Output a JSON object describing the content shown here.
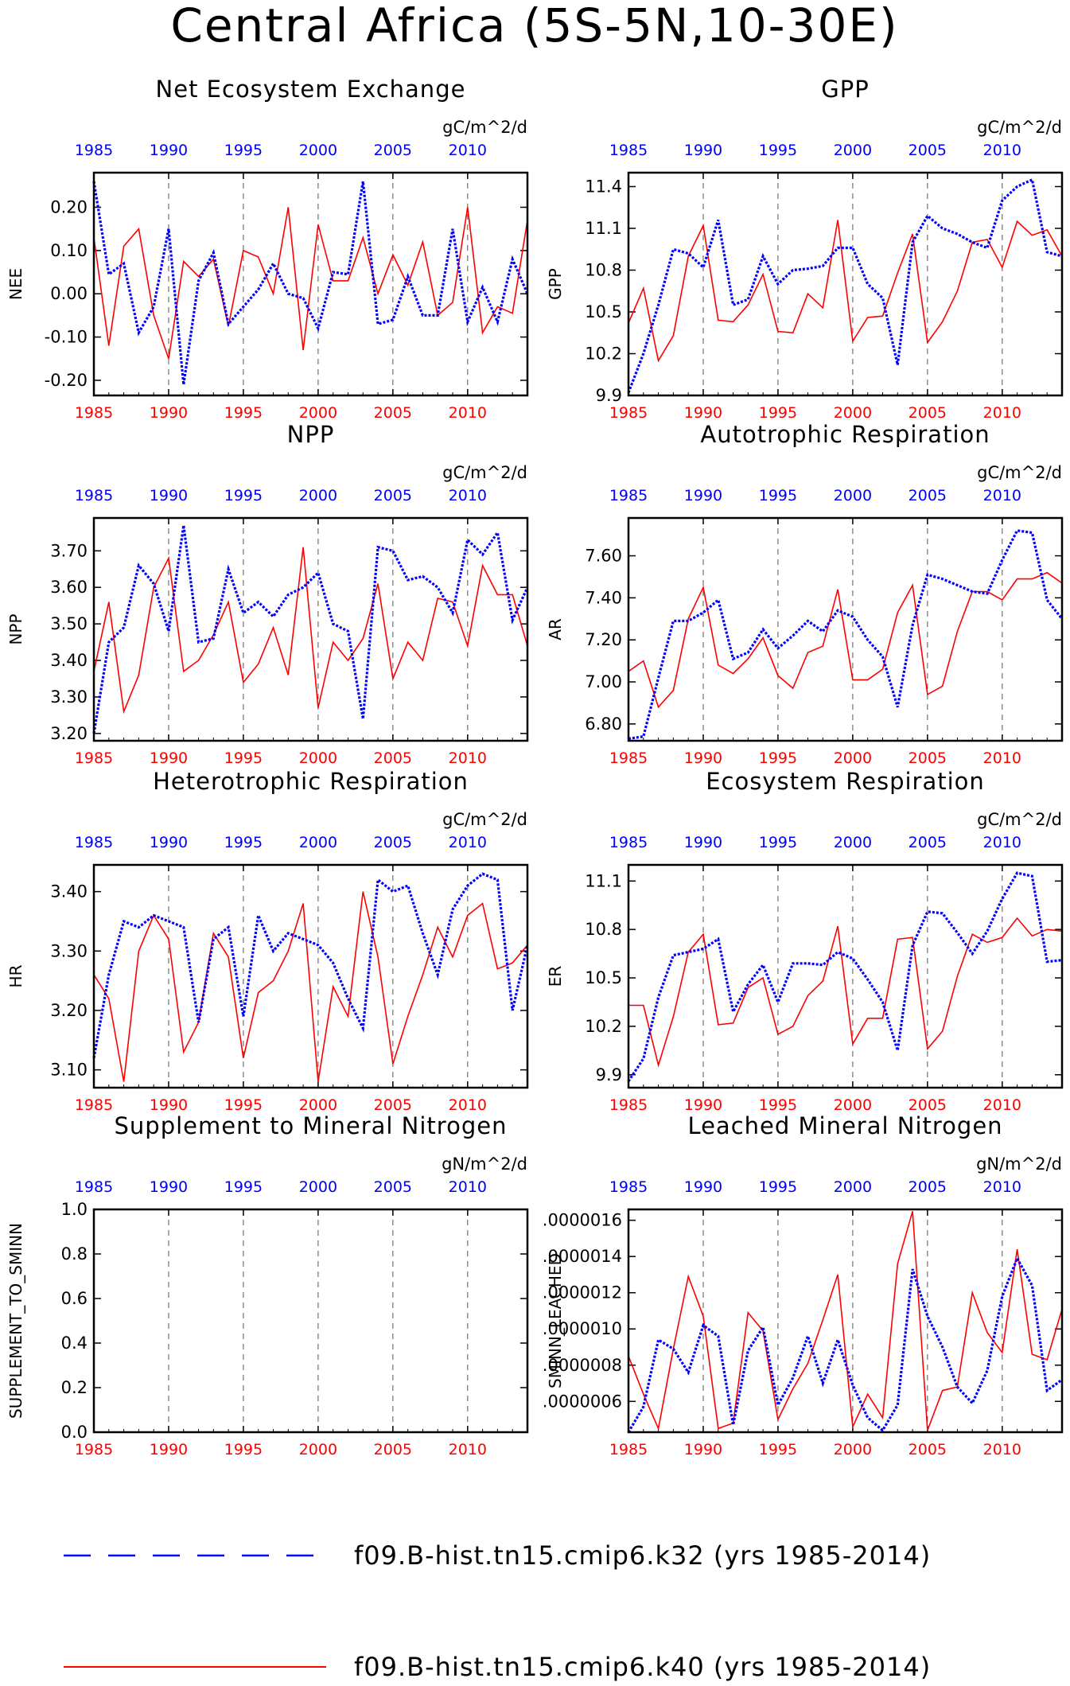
{
  "title": "Central Africa (5S-5N,10-30E)",
  "colors": {
    "series_a": "#0000ff",
    "series_b": "#ff0000",
    "axis": "#000000",
    "grid": "#555555"
  },
  "legend": {
    "items": [
      {
        "label": "f09.B-hist.tn15.cmip6.k32 (yrs 1985-2014)",
        "color": "#0000ff",
        "style": "dashed"
      },
      {
        "label": "f09.B-hist.tn15.cmip6.k40 (yrs 1985-2014)",
        "color": "#ff0000",
        "style": "solid"
      }
    ]
  },
  "chart_data": [
    {
      "type": "line",
      "title": "Net Ecosystem Exchange",
      "ylabel": "NEE",
      "units": "gC/m^2/d",
      "xlim": [
        1985,
        2014
      ],
      "ylim": [
        -0.235,
        0.28
      ],
      "yticks": [
        -0.2,
        -0.1,
        0.0,
        0.1,
        0.2
      ],
      "yticklabels": [
        "-0.20",
        "-0.10",
        "0.00",
        "0.10",
        "0.20"
      ],
      "xticks": [
        1985,
        1990,
        1995,
        2000,
        2005,
        2010
      ],
      "x": [
        1985,
        1986,
        1987,
        1988,
        1989,
        1990,
        1991,
        1992,
        1993,
        1994,
        1995,
        1996,
        1997,
        1998,
        1999,
        2000,
        2001,
        2002,
        2003,
        2004,
        2005,
        2006,
        2007,
        2008,
        2009,
        2010,
        2011,
        2012,
        2013,
        2014
      ],
      "series": [
        {
          "values": [
            0.26,
            0.045,
            0.07,
            -0.09,
            -0.03,
            0.15,
            -0.21,
            0.03,
            0.095,
            -0.07,
            -0.03,
            0.01,
            0.07,
            0.0,
            -0.01,
            -0.08,
            0.05,
            0.045,
            0.26,
            -0.07,
            -0.06,
            0.04,
            -0.05,
            -0.05,
            0.15,
            -0.065,
            0.015,
            -0.065,
            0.08,
            0.0
          ]
        },
        {
          "values": [
            0.13,
            -0.12,
            0.11,
            0.15,
            -0.05,
            -0.15,
            0.075,
            0.04,
            0.08,
            -0.075,
            0.1,
            0.085,
            0.0,
            0.2,
            -0.13,
            0.16,
            0.03,
            0.03,
            0.13,
            0.0,
            0.09,
            0.02,
            0.12,
            -0.05,
            -0.02,
            0.2,
            -0.09,
            -0.03,
            -0.045,
            0.17
          ]
        }
      ]
    },
    {
      "type": "line",
      "title": "GPP",
      "ylabel": "GPP",
      "units": "gC/m^2/d",
      "xlim": [
        1985,
        2014
      ],
      "ylim": [
        9.9,
        11.5
      ],
      "yticks": [
        9.9,
        10.2,
        10.5,
        10.8,
        11.1,
        11.4
      ],
      "yticklabels": [
        "9.9",
        "10.2",
        "10.5",
        "10.8",
        "11.1",
        "11.4"
      ],
      "xticks": [
        1985,
        1990,
        1995,
        2000,
        2005,
        2010
      ],
      "x": [
        1985,
        1986,
        1987,
        1988,
        1989,
        1990,
        1991,
        1992,
        1993,
        1994,
        1995,
        1996,
        1997,
        1998,
        1999,
        2000,
        2001,
        2002,
        2003,
        2004,
        2005,
        2006,
        2007,
        2008,
        2009,
        2010,
        2011,
        2012,
        2013,
        2014
      ],
      "series": [
        {
          "values": [
            9.92,
            10.2,
            10.55,
            10.95,
            10.92,
            10.82,
            11.16,
            10.55,
            10.59,
            10.9,
            10.7,
            10.8,
            10.81,
            10.83,
            10.96,
            10.96,
            10.7,
            10.6,
            10.12,
            11.0,
            11.19,
            11.1,
            11.06,
            11.0,
            10.96,
            11.3,
            11.4,
            11.45,
            10.93,
            10.9
          ]
        },
        {
          "values": [
            10.42,
            10.67,
            10.15,
            10.33,
            10.9,
            11.12,
            10.44,
            10.43,
            10.55,
            10.77,
            10.36,
            10.35,
            10.63,
            10.53,
            11.16,
            10.29,
            10.46,
            10.47,
            10.78,
            11.06,
            10.28,
            10.43,
            10.65,
            11.0,
            11.02,
            10.82,
            11.15,
            11.05,
            11.09,
            10.9
          ]
        }
      ]
    },
    {
      "type": "line",
      "title": "NPP",
      "ylabel": "NPP",
      "units": "gC/m^2/d",
      "xlim": [
        1985,
        2014
      ],
      "ylim": [
        3.18,
        3.79
      ],
      "yticks": [
        3.2,
        3.3,
        3.4,
        3.5,
        3.6,
        3.7
      ],
      "yticklabels": [
        "3.20",
        "3.30",
        "3.40",
        "3.50",
        "3.60",
        "3.70"
      ],
      "xticks": [
        1985,
        1990,
        1995,
        2000,
        2005,
        2010
      ],
      "x": [
        1985,
        1986,
        1987,
        1988,
        1989,
        1990,
        1991,
        1992,
        1993,
        1994,
        1995,
        1996,
        1997,
        1998,
        1999,
        2000,
        2001,
        2002,
        2003,
        2004,
        2005,
        2006,
        2007,
        2008,
        2009,
        2010,
        2011,
        2012,
        2013,
        2014
      ],
      "series": [
        {
          "values": [
            3.2,
            3.45,
            3.49,
            3.66,
            3.61,
            3.48,
            3.77,
            3.45,
            3.46,
            3.65,
            3.53,
            3.56,
            3.52,
            3.58,
            3.6,
            3.64,
            3.5,
            3.48,
            3.24,
            3.71,
            3.7,
            3.62,
            3.63,
            3.6,
            3.53,
            3.73,
            3.69,
            3.75,
            3.51,
            3.6
          ]
        },
        {
          "values": [
            3.37,
            3.56,
            3.26,
            3.36,
            3.6,
            3.68,
            3.37,
            3.4,
            3.47,
            3.56,
            3.34,
            3.39,
            3.49,
            3.36,
            3.71,
            3.27,
            3.45,
            3.4,
            3.46,
            3.61,
            3.35,
            3.45,
            3.4,
            3.57,
            3.56,
            3.44,
            3.66,
            3.58,
            3.58,
            3.44
          ]
        }
      ]
    },
    {
      "type": "line",
      "title": "Autotrophic Respiration",
      "ylabel": "AR",
      "units": "gC/m^2/d",
      "xlim": [
        1985,
        2014
      ],
      "ylim": [
        6.72,
        7.78
      ],
      "yticks": [
        6.8,
        7.0,
        7.2,
        7.4,
        7.6
      ],
      "yticklabels": [
        "6.80",
        "7.00",
        "7.20",
        "7.40",
        "7.60"
      ],
      "xticks": [
        1985,
        1990,
        1995,
        2000,
        2005,
        2010
      ],
      "x": [
        1985,
        1986,
        1987,
        1988,
        1989,
        1990,
        1991,
        1992,
        1993,
        1994,
        1995,
        1996,
        1997,
        1998,
        1999,
        2000,
        2001,
        2002,
        2003,
        2004,
        2005,
        2006,
        2007,
        2008,
        2009,
        2010,
        2011,
        2012,
        2013,
        2014
      ],
      "series": [
        {
          "values": [
            6.73,
            6.74,
            7.02,
            7.29,
            7.29,
            7.33,
            7.39,
            7.11,
            7.14,
            7.25,
            7.16,
            7.22,
            7.29,
            7.24,
            7.34,
            7.31,
            7.2,
            7.12,
            6.88,
            7.27,
            7.51,
            7.49,
            7.46,
            7.43,
            7.42,
            7.58,
            7.72,
            7.71,
            7.39,
            7.3
          ]
        },
        {
          "values": [
            7.05,
            7.1,
            6.88,
            6.96,
            7.3,
            7.45,
            7.08,
            7.04,
            7.11,
            7.21,
            7.03,
            6.97,
            7.14,
            7.17,
            7.44,
            7.01,
            7.01,
            7.06,
            7.33,
            7.46,
            6.94,
            6.98,
            7.24,
            7.43,
            7.43,
            7.39,
            7.49,
            7.49,
            7.52,
            7.47
          ]
        }
      ]
    },
    {
      "type": "line",
      "title": "Heterotrophic Respiration",
      "ylabel": "HR",
      "units": "gC/m^2/d",
      "xlim": [
        1985,
        2014
      ],
      "ylim": [
        3.07,
        3.445
      ],
      "yticks": [
        3.1,
        3.2,
        3.3,
        3.4
      ],
      "yticklabels": [
        "3.10",
        "3.20",
        "3.30",
        "3.40"
      ],
      "xticks": [
        1985,
        1990,
        1995,
        2000,
        2005,
        2010
      ],
      "x": [
        1985,
        1986,
        1987,
        1988,
        1989,
        1990,
        1991,
        1992,
        1993,
        1994,
        1995,
        1996,
        1997,
        1998,
        1999,
        2000,
        2001,
        2002,
        2003,
        2004,
        2005,
        2006,
        2007,
        2008,
        2009,
        2010,
        2011,
        2012,
        2013,
        2014
      ],
      "series": [
        {
          "values": [
            3.12,
            3.26,
            3.35,
            3.34,
            3.36,
            3.35,
            3.34,
            3.18,
            3.32,
            3.34,
            3.19,
            3.36,
            3.3,
            3.33,
            3.32,
            3.31,
            3.28,
            3.22,
            3.17,
            3.42,
            3.4,
            3.41,
            3.33,
            3.26,
            3.37,
            3.41,
            3.43,
            3.42,
            3.2,
            3.31
          ]
        },
        {
          "values": [
            3.26,
            3.22,
            3.08,
            3.3,
            3.36,
            3.32,
            3.13,
            3.18,
            3.33,
            3.29,
            3.12,
            3.23,
            3.25,
            3.3,
            3.38,
            3.08,
            3.24,
            3.19,
            3.4,
            3.29,
            3.11,
            3.19,
            3.26,
            3.34,
            3.29,
            3.36,
            3.38,
            3.27,
            3.28,
            3.31
          ]
        }
      ]
    },
    {
      "type": "line",
      "title": "Ecosystem Respiration",
      "ylabel": "ER",
      "units": "gC/m^2/d",
      "xlim": [
        1985,
        2014
      ],
      "ylim": [
        9.82,
        11.2
      ],
      "yticks": [
        9.9,
        10.2,
        10.5,
        10.8,
        11.1
      ],
      "yticklabels": [
        "9.9",
        "10.2",
        "10.5",
        "10.8",
        "11.1"
      ],
      "xticks": [
        1985,
        1990,
        1995,
        2000,
        2005,
        2010
      ],
      "x": [
        1985,
        1986,
        1987,
        1988,
        1989,
        1990,
        1991,
        1992,
        1993,
        1994,
        1995,
        1996,
        1997,
        1998,
        1999,
        2000,
        2001,
        2002,
        2003,
        2004,
        2005,
        2006,
        2007,
        2008,
        2009,
        2010,
        2011,
        2012,
        2013,
        2014
      ],
      "series": [
        {
          "values": [
            9.86,
            10.0,
            10.38,
            10.64,
            10.66,
            10.68,
            10.74,
            10.29,
            10.46,
            10.58,
            10.35,
            10.59,
            10.59,
            10.58,
            10.66,
            10.62,
            10.49,
            10.35,
            10.05,
            10.7,
            10.91,
            10.9,
            10.78,
            10.65,
            10.79,
            10.99,
            11.15,
            11.13,
            10.6,
            10.61
          ]
        },
        {
          "values": [
            10.33,
            10.33,
            9.96,
            10.26,
            10.66,
            10.77,
            10.21,
            10.22,
            10.44,
            10.5,
            10.15,
            10.2,
            10.39,
            10.48,
            10.82,
            10.09,
            10.25,
            10.25,
            10.74,
            10.75,
            10.06,
            10.17,
            10.51,
            10.77,
            10.72,
            10.75,
            10.87,
            10.76,
            10.8,
            10.79
          ]
        }
      ]
    },
    {
      "type": "line",
      "title": "Supplement to Mineral Nitrogen",
      "ylabel": "SUPPLEMENT_TO_SMINN",
      "units": "gN/m^2/d",
      "xlim": [
        1985,
        2014
      ],
      "ylim": [
        0.0,
        1.0
      ],
      "yticks": [
        0.0,
        0.2,
        0.4,
        0.6,
        0.8,
        1.0
      ],
      "yticklabels": [
        "0.0",
        "0.2",
        "0.4",
        "0.6",
        "0.8",
        "1.0"
      ],
      "xticks": [
        1985,
        1990,
        1995,
        2000,
        2005,
        2010
      ],
      "x": [],
      "series": []
    },
    {
      "type": "line",
      "title": "Leached Mineral Nitrogen",
      "ylabel": "SMINN_LEACHED",
      "units": "gN/m^2/d",
      "xlim": [
        1985,
        2014
      ],
      "ylim": [
        4.3e-07,
        1.66e-06
      ],
      "yticks": [
        6e-07,
        8e-07,
        1e-06,
        1.2e-06,
        1.4e-06,
        1.6e-06
      ],
      "yticklabels": [
        ".0000006",
        ".0000008",
        ".0000010",
        ".0000012",
        ".0000014",
        ".0000016"
      ],
      "xticks": [
        1985,
        1990,
        1995,
        2000,
        2005,
        2010
      ],
      "x": [
        1985,
        1986,
        1987,
        1988,
        1989,
        1990,
        1991,
        1992,
        1993,
        1994,
        1995,
        1996,
        1997,
        1998,
        1999,
        2000,
        2001,
        2002,
        2003,
        2004,
        2005,
        2006,
        2007,
        2008,
        2009,
        2010,
        2011,
        2012,
        2013,
        2014
      ],
      "series": [
        {
          "values": [
            4.3e-07,
            5.7e-07,
            9.4e-07,
            8.9e-07,
            7.6e-07,
            1.02e-06,
            9.6e-07,
            4.7e-07,
            8.8e-07,
            1.01e-06,
            5.8e-07,
            7.3e-07,
            9.6e-07,
            7e-07,
            9.4e-07,
            6.9e-07,
            5.1e-07,
            4.4e-07,
            5.8e-07,
            1.33e-06,
            1.07e-06,
            9e-07,
            6.8e-07,
            5.9e-07,
            7.7e-07,
            1.18e-06,
            1.39e-06,
            1.24e-06,
            6.6e-07,
            7.2e-07
          ]
        },
        {
          "values": [
            8.5e-07,
            6.4e-07,
            4.5e-07,
            8.9e-07,
            1.29e-06,
            1.07e-06,
            4.5e-07,
            4.8e-07,
            1.09e-06,
            9.9e-07,
            5e-07,
            6.7e-07,
            8.1e-07,
            1.05e-06,
            1.3e-06,
            4.6e-07,
            6.4e-07,
            5.1e-07,
            1.36e-06,
            1.65e-06,
            4.4e-07,
            6.6e-07,
            6.8e-07,
            1.2e-06,
            9.8e-07,
            8.7e-07,
            1.44e-06,
            8.6e-07,
            8.3e-07,
            1.11e-06
          ]
        }
      ]
    }
  ]
}
